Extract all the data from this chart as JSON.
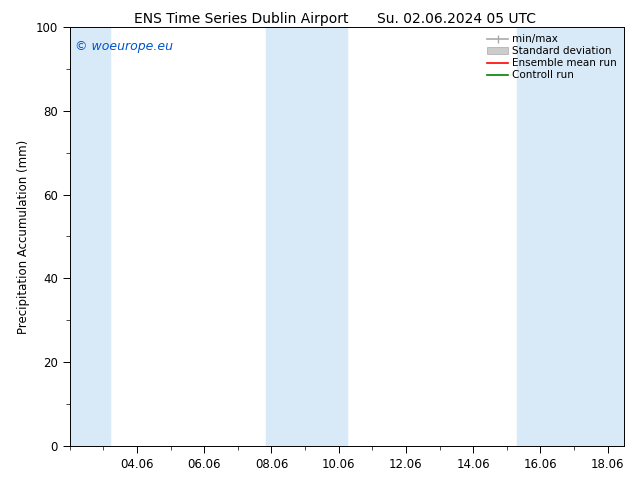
{
  "title_left": "ENS Time Series Dublin Airport",
  "title_right": "Su. 02.06.2024 05 UTC",
  "ylabel": "Precipitation Accumulation (mm)",
  "watermark": "© woeurope.eu",
  "watermark_color": "#0055cc",
  "ylim": [
    0,
    100
  ],
  "xlim_start": 2.0,
  "xlim_end": 18.5,
  "xtick_positions": [
    4.0,
    6.0,
    8.0,
    10.0,
    12.0,
    14.0,
    16.0,
    18.0
  ],
  "xtick_labels": [
    "04.06",
    "06.06",
    "08.06",
    "10.06",
    "12.06",
    "14.06",
    "16.06",
    "18.06"
  ],
  "ytick_positions": [
    0,
    20,
    40,
    60,
    80,
    100
  ],
  "ytick_labels": [
    "0",
    "20",
    "40",
    "60",
    "80",
    "100"
  ],
  "shaded_bands": [
    {
      "x_start": 2.0,
      "x_end": 3.2,
      "color": "#d8eaf7"
    },
    {
      "x_start": 7.85,
      "x_end": 10.25,
      "color": "#d8eaf7"
    },
    {
      "x_start": 15.3,
      "x_end": 18.5,
      "color": "#d8eaf7"
    }
  ],
  "legend_entries": [
    {
      "label": "min/max",
      "color": "#aaaaaa",
      "linestyle": "-",
      "linewidth": 1.2
    },
    {
      "label": "Standard deviation",
      "color": "#cccccc",
      "linestyle": "-",
      "linewidth": 5
    },
    {
      "label": "Ensemble mean run",
      "color": "#ff0000",
      "linestyle": "-",
      "linewidth": 1.2
    },
    {
      "label": "Controll run",
      "color": "#008000",
      "linestyle": "-",
      "linewidth": 1.2
    }
  ],
  "background_color": "#ffffff",
  "tick_color": "#000000",
  "font_size": 8.5,
  "title_font_size": 10,
  "watermark_font_size": 9
}
